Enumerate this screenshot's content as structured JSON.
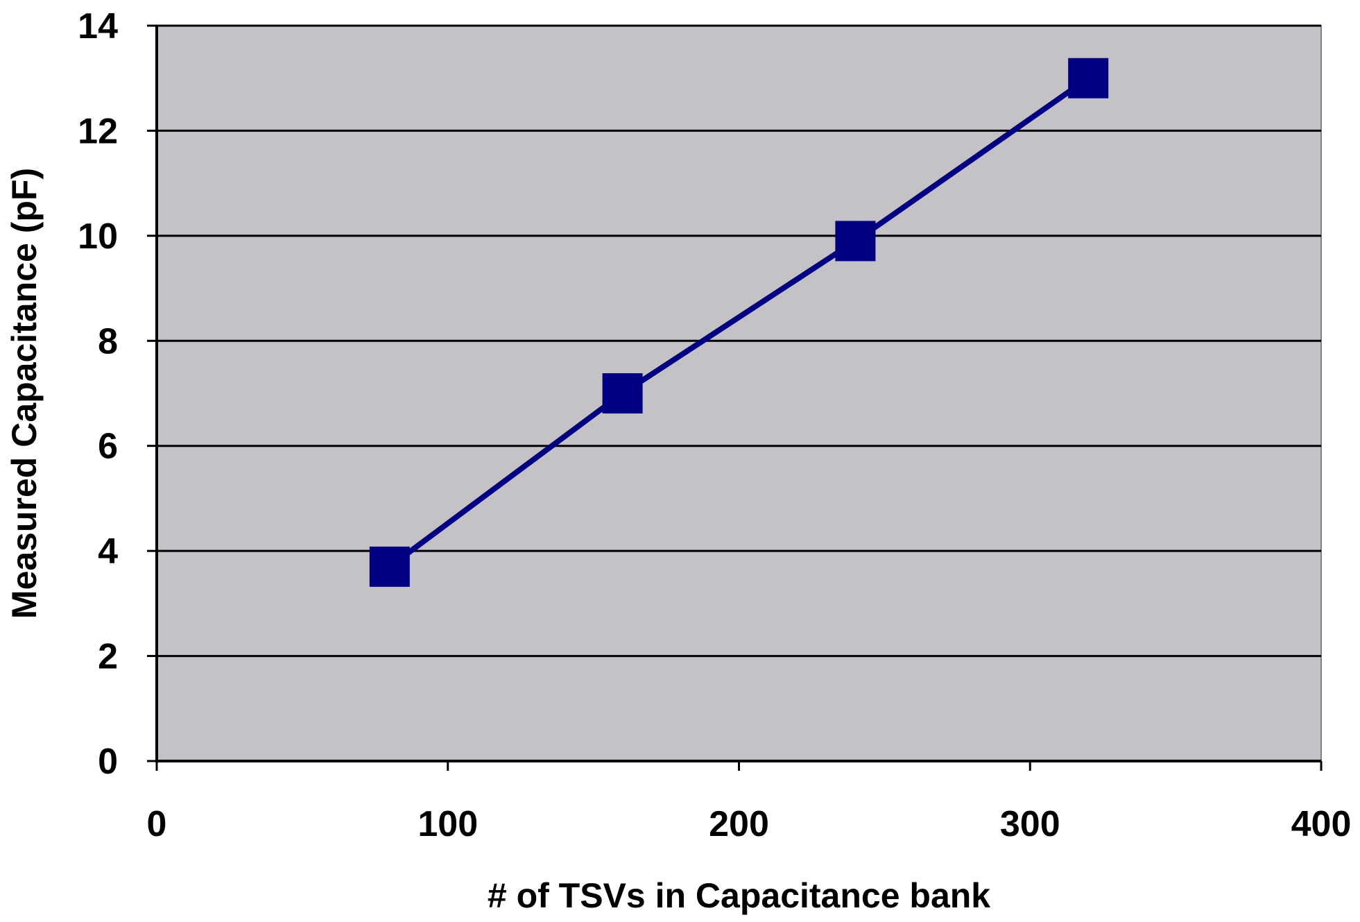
{
  "chart_data": {
    "type": "line",
    "title": "",
    "xlabel": "# of TSVs in Capacitance bank",
    "ylabel": "Measured Capacitance (pF)",
    "xlim": [
      0,
      400
    ],
    "ylim": [
      0,
      14
    ],
    "xticks": [
      0,
      100,
      200,
      300,
      400
    ],
    "yticks": [
      0,
      2,
      4,
      6,
      8,
      10,
      12,
      14
    ],
    "grid": "horizontal",
    "legend": "none",
    "series": [
      {
        "x": [
          80,
          160,
          240,
          320
        ],
        "y": [
          3.7,
          7.0,
          9.9,
          13.0
        ],
        "marker": "square",
        "color": "#000080"
      }
    ],
    "colors": {
      "plot_background": "#c4c2c6",
      "gridline": "#000000",
      "series": "#000080"
    }
  }
}
